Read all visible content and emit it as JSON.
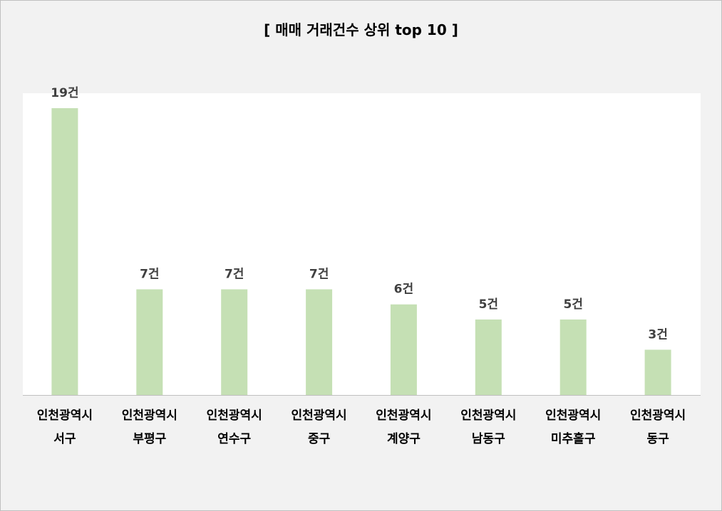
{
  "chart_data": {
    "type": "bar",
    "title": "[ 매매 거래건수 상위 top 10 ]",
    "xlabel": "",
    "ylabel": "",
    "unit_suffix": "건",
    "categories": [
      [
        "인천광역시",
        "서구"
      ],
      [
        "인천광역시",
        "부평구"
      ],
      [
        "인천광역시",
        "연수구"
      ],
      [
        "인천광역시",
        "중구"
      ],
      [
        "인천광역시",
        "계양구"
      ],
      [
        "인천광역시",
        "남동구"
      ],
      [
        "인천광역시",
        "미추홀구"
      ],
      [
        "인천광역시",
        "동구"
      ]
    ],
    "values": [
      19,
      7,
      7,
      7,
      6,
      5,
      5,
      3
    ],
    "data_labels": [
      "19건",
      "7건",
      "7건",
      "7건",
      "6건",
      "5건",
      "5건",
      "3건"
    ],
    "ylim": [
      0,
      20
    ],
    "grid": false,
    "legend": "none",
    "colors": {
      "bar": "#c5e0b4",
      "plot_background": "#ffffff",
      "chart_background": "#f2f2f2",
      "axis_line": "#bfbfbf",
      "data_label": "#404040"
    }
  }
}
